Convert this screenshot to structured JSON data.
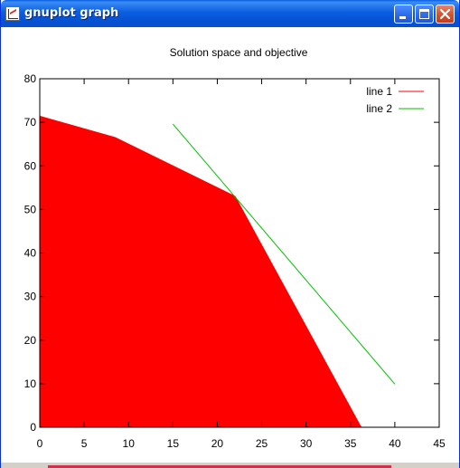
{
  "window": {
    "title": "gnuplot graph",
    "icon": "gnuplot-icon",
    "controls": [
      "minimize-icon",
      "maximize-icon",
      "close-icon"
    ]
  },
  "chart_data": {
    "type": "area",
    "title": "Solution space and objective",
    "xlabel": "",
    "ylabel": "",
    "xlim": [
      0,
      45
    ],
    "ylim": [
      0,
      80
    ],
    "xticks": [
      0,
      5,
      10,
      15,
      20,
      25,
      30,
      35,
      40,
      45
    ],
    "yticks": [
      0,
      10,
      20,
      30,
      40,
      50,
      60,
      70,
      80
    ],
    "grid": false,
    "legend_position": "top-right",
    "series": [
      {
        "name": "line 1",
        "style": "filledcurve",
        "color": "#ff0000",
        "x": [
          0,
          8.5,
          22,
          36.2,
          40
        ],
        "y": [
          71.4,
          66.5,
          53,
          0,
          0
        ]
      },
      {
        "name": "line 2",
        "style": "line",
        "color": "#00c000",
        "x": [
          15,
          40
        ],
        "y": [
          69.6,
          9.9
        ]
      }
    ]
  }
}
